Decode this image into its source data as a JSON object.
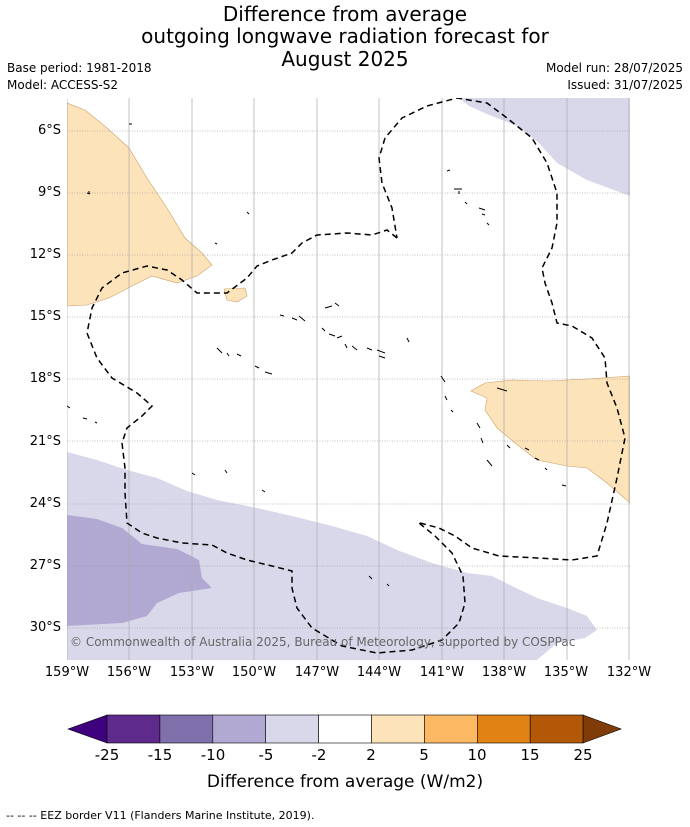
{
  "title": {
    "line1": "Difference from average",
    "line2": "outgoing longwave radiation forecast for",
    "line3": "August 2025"
  },
  "meta": {
    "base_period": "Base period: 1981-2018",
    "model": "Model: ACCESS-S2",
    "model_run": "Model run: 28/07/2025",
    "issued": "Issued: 31/07/2025"
  },
  "map": {
    "lat_labels": [
      "6°S",
      "9°S",
      "12°S",
      "15°S",
      "18°S",
      "21°S",
      "24°S",
      "27°S",
      "30°S"
    ],
    "lon_labels": [
      "159°W",
      "156°W",
      "153°W",
      "150°W",
      "147°W",
      "144°W",
      "141°W",
      "138°W",
      "135°W",
      "132°W"
    ],
    "copyright": "© Commonwealth of Australia 2025, Bureau of Meteorology, supported by COSPPac",
    "colors": {
      "slight_positive": "#fde3b9",
      "slight_negative": "#d8d8ea",
      "moderate_negative": "#b1a9d2"
    }
  },
  "colorbar": {
    "labels": [
      "-25",
      "-15",
      "-10",
      "-5",
      "-2",
      "2",
      "5",
      "10",
      "15",
      "25"
    ],
    "colors": [
      "#3f007d",
      "#5e2a8c",
      "#7f70ab",
      "#b1a9d2",
      "#d8d8ea",
      "#ffffff",
      "#fde3b9",
      "#fdb863",
      "#e08214",
      "#b35806",
      "#7f3b08"
    ],
    "title": "Difference from average (W/m2)"
  },
  "footnote": "--  --  -- EEZ border V11 (Flanders Marine Institute, 2019)."
}
